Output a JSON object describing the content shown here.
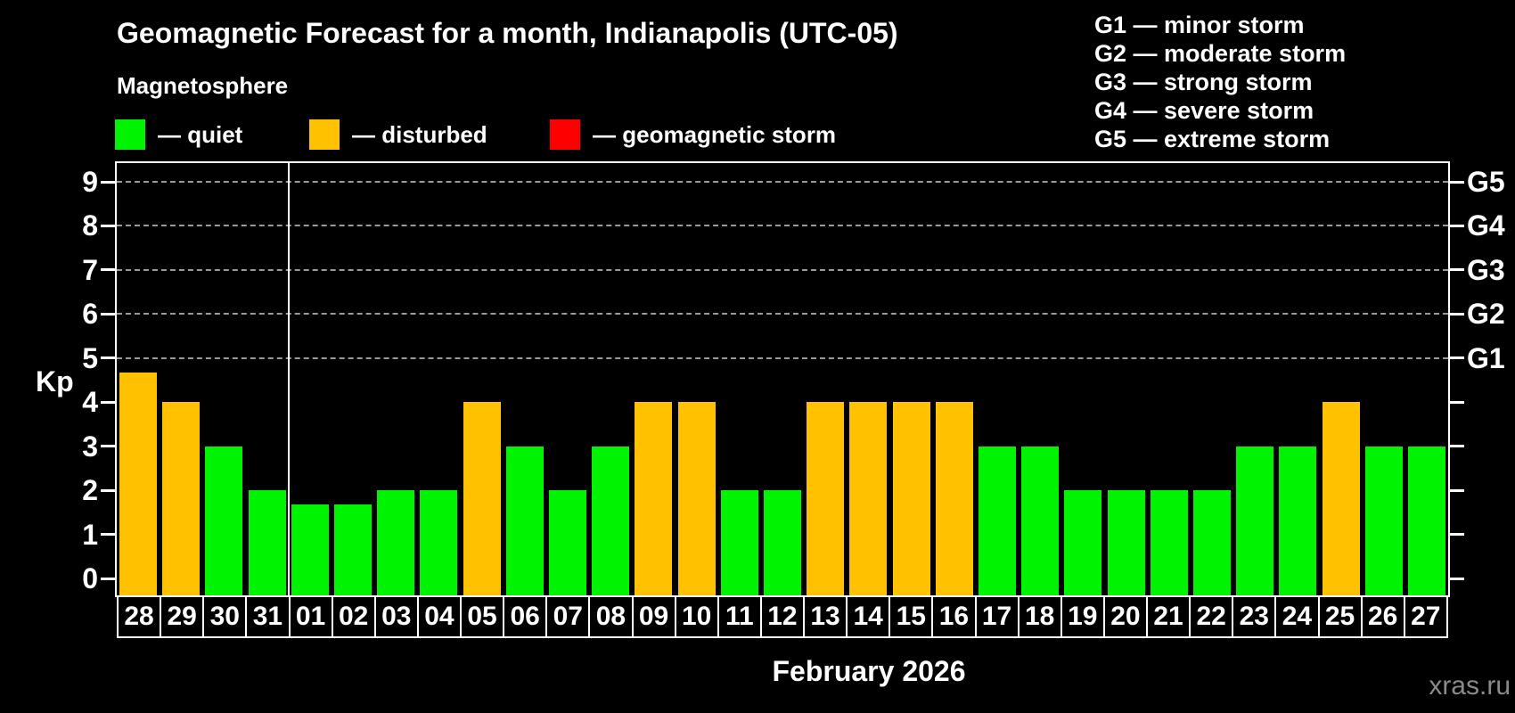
{
  "header": {
    "title": "Geomagnetic Forecast for a month, Indianapolis (UTC-05)",
    "subtitle": "Magnetosphere"
  },
  "legend": {
    "items": [
      {
        "key": "quiet",
        "label": "— quiet"
      },
      {
        "key": "disturbed",
        "label": "— disturbed"
      },
      {
        "key": "storm",
        "label": "— geomagnetic storm"
      }
    ]
  },
  "g_legend": {
    "items": [
      "G1 — minor storm",
      "G2 — moderate storm",
      "G3 — strong storm",
      "G4 — severe storm",
      "G5 — extreme storm"
    ]
  },
  "colors": {
    "quiet": "#00f300",
    "disturbed": "#ffc100",
    "storm": "#ff0000",
    "axis": "#ffffff",
    "grid": "#9a9a9a",
    "watermark": "#8a8a8a",
    "background": "#000000"
  },
  "chart_data": {
    "type": "bar",
    "title": "Geomagnetic Forecast for a month, Indianapolis (UTC-05)",
    "xlabel": "February 2026",
    "ylabel": "Kp",
    "ylim": [
      0,
      9
    ],
    "grid": "horizontal dashed lines at Kp 5-9 (G1-G5 levels)",
    "legend_position": "top-left and top-right",
    "categories": [
      "28",
      "29",
      "30",
      "31",
      "01",
      "02",
      "03",
      "04",
      "05",
      "06",
      "07",
      "08",
      "09",
      "10",
      "11",
      "12",
      "13",
      "14",
      "15",
      "16",
      "17",
      "18",
      "19",
      "20",
      "21",
      "22",
      "23",
      "24",
      "25",
      "26",
      "27"
    ],
    "values": [
      4.67,
      4,
      3,
      2,
      1.67,
      1.67,
      2,
      2,
      4,
      3,
      2,
      3,
      4,
      4,
      2,
      2,
      4,
      4,
      4,
      4,
      3,
      3,
      2,
      2,
      2,
      2,
      3,
      3,
      4,
      3,
      3
    ],
    "statuses": [
      "disturbed",
      "disturbed",
      "quiet",
      "quiet",
      "quiet",
      "quiet",
      "quiet",
      "quiet",
      "disturbed",
      "quiet",
      "quiet",
      "quiet",
      "disturbed",
      "disturbed",
      "quiet",
      "quiet",
      "disturbed",
      "disturbed",
      "disturbed",
      "disturbed",
      "quiet",
      "quiet",
      "quiet",
      "quiet",
      "quiet",
      "quiet",
      "quiet",
      "quiet",
      "disturbed",
      "quiet",
      "quiet"
    ],
    "month_boundary_index": 4,
    "yticks": [
      0,
      1,
      2,
      3,
      4,
      5,
      6,
      7,
      8,
      9
    ],
    "right_axis": [
      {
        "value": 5,
        "label": "G1"
      },
      {
        "value": 6,
        "label": "G2"
      },
      {
        "value": 7,
        "label": "G3"
      },
      {
        "value": 8,
        "label": "G4"
      },
      {
        "value": 9,
        "label": "G5"
      }
    ]
  },
  "watermark": "xras.ru"
}
